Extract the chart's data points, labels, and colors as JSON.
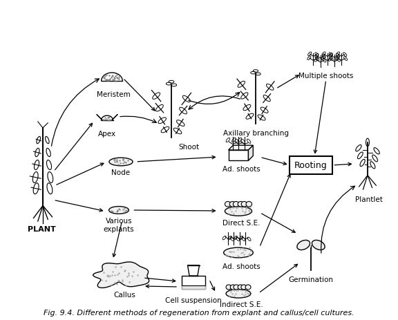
{
  "title": "Fig. 9.4. Different methods of regeneration from explant and callus/cell cultures.",
  "title_fontsize": 8,
  "bg_color": "#ffffff",
  "labels": {
    "plant": "PLANT",
    "meristem": "Meristem",
    "apex": "Apex",
    "node": "Node",
    "various_explants": "Various\nexplants",
    "callus": "Callus",
    "cell_suspension": "Cell suspension",
    "shoot": "Shoot",
    "axillary_branching": "Axillary branching",
    "multiple_shoots": "Multiple shoots",
    "ad_shoots_direct": "Ad. shoots",
    "direct_se": "Direct S.E.",
    "ad_shoots_indirect": "Ad. shoots",
    "indirect_se": "Indirect S.E.",
    "rooting": "Rooting",
    "plantlet": "Plantlet",
    "germination": "Germination"
  },
  "fig_width": 5.76,
  "fig_height": 4.64,
  "dpi": 100
}
